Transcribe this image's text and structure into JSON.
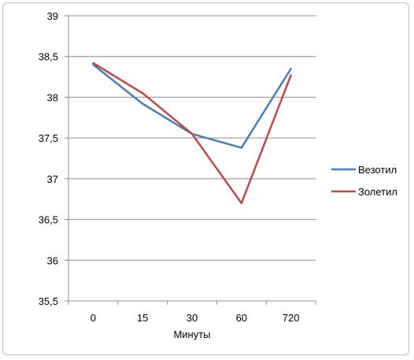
{
  "chart_data": {
    "type": "line",
    "categories": [
      "0",
      "15",
      "30",
      "60",
      "720"
    ],
    "xlabel": "Минуты",
    "ylabel": "",
    "ylim": [
      35.5,
      39
    ],
    "ytick_labels": [
      "35,5",
      "36",
      "36,5",
      "37",
      "37,5",
      "38",
      "38,5",
      "39"
    ],
    "ytick_values": [
      35.5,
      36,
      36.5,
      37,
      37.5,
      38,
      38.5,
      39
    ],
    "grid": true,
    "legend_position": "right",
    "series": [
      {
        "name": "Везотил",
        "color": "#4a7ebb",
        "values": [
          38.4,
          37.92,
          37.55,
          37.38,
          38.35
        ]
      },
      {
        "name": "Золетил",
        "color": "#be4b48",
        "values": [
          38.42,
          38.05,
          37.55,
          36.7,
          38.27
        ]
      }
    ]
  }
}
